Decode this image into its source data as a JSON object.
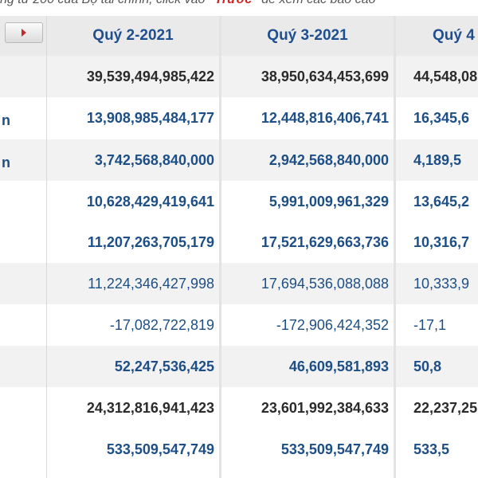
{
  "note": {
    "before": "ng tư 200 của Bộ tài chính, click vào ",
    "highlight": "\"Trước\"",
    "after": " để xem các báo cáo"
  },
  "columns": [
    "Quý 2-2021",
    "Quý 3-2021",
    "Quý 4"
  ],
  "row_labels": [
    "",
    "n",
    "n",
    "",
    "",
    "",
    "",
    "",
    "",
    ""
  ],
  "rows": [
    {
      "q2": "39,539,494,985,422",
      "q3": "38,950,634,453,699",
      "q4": "44,548,08",
      "style": "dark-bold",
      "shade": true
    },
    {
      "q2": "13,908,985,484,177",
      "q3": "12,448,816,406,741",
      "q4": "16,345,6",
      "style": "bold",
      "shade": false
    },
    {
      "q2": "3,742,568,840,000",
      "q3": "2,942,568,840,000",
      "q4": "4,189,5",
      "style": "bold",
      "shade": true
    },
    {
      "q2": "10,628,429,419,641",
      "q3": "5,991,009,961,329",
      "q4": "13,645,2",
      "style": "bold",
      "shade": false
    },
    {
      "q2": "11,207,263,705,179",
      "q3": "17,521,629,663,736",
      "q4": "10,316,7",
      "style": "bold",
      "shade": false
    },
    {
      "q2": "11,224,346,427,998",
      "q3": "17,694,536,088,088",
      "q4": "10,333,9",
      "style": "normal",
      "shade": true
    },
    {
      "q2": "-17,082,722,819",
      "q3": "-172,906,424,352",
      "q4": "-17,1",
      "style": "normal",
      "shade": false
    },
    {
      "q2": "52,247,536,425",
      "q3": "46,609,581,893",
      "q4": "50,8",
      "style": "bold",
      "shade": true
    },
    {
      "q2": "24,312,816,941,423",
      "q3": "23,601,992,384,633",
      "q4": "22,237,25",
      "style": "dark-bold",
      "shade": false
    },
    {
      "q2": "533,509,547,749",
      "q3": "533,509,547,749",
      "q4": "533,5",
      "style": "bold",
      "shade": false
    }
  ],
  "colors": {
    "header_text": "#1f4f8f",
    "value_text": "#1d4f86",
    "dark_text": "#2b2b2b",
    "nav_arrow": "#c62828"
  },
  "icons": {
    "nav": "play-arrow-icon"
  }
}
